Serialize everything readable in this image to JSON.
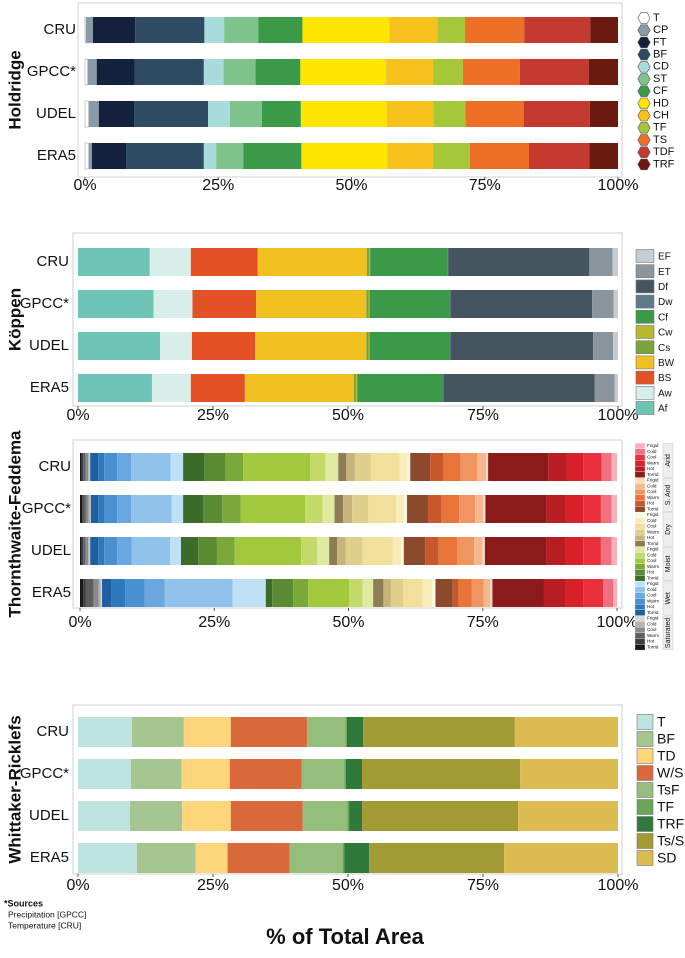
{
  "chart_data": [
    {
      "type": "bar",
      "orientation": "horizontal",
      "stacked": true,
      "ylabel": "Holdridge",
      "categories": [
        "CRU",
        "GPCC*",
        "UDEL",
        "ERA5"
      ],
      "xlim": [
        0,
        100
      ],
      "xticks": [
        {
          "value": 0,
          "label": "0%"
        },
        {
          "value": 25,
          "label": "25%"
        },
        {
          "value": 50,
          "label": "50%"
        },
        {
          "value": 75,
          "label": "75%"
        },
        {
          "value": 100,
          "label": "100%"
        }
      ],
      "series": [
        {
          "name": "T",
          "color": "#ffffff",
          "values": [
            0.2,
            0.5,
            0.7,
            0.7
          ]
        },
        {
          "name": "CP",
          "color": "#8a9ba8",
          "values": [
            1.3,
            1.7,
            1.9,
            0.6
          ]
        },
        {
          "name": "FT",
          "color": "#14213d",
          "values": [
            7.9,
            7.1,
            6.6,
            6.4
          ]
        },
        {
          "name": "BF",
          "color": "#2f4b63",
          "values": [
            13.0,
            13.0,
            13.9,
            14.6
          ]
        },
        {
          "name": "CD",
          "color": "#a8dcdc",
          "values": [
            3.7,
            3.7,
            4.1,
            2.3
          ]
        },
        {
          "name": "ST",
          "color": "#7fc38c",
          "values": [
            6.4,
            6.0,
            6.0,
            5.1
          ]
        },
        {
          "name": "CF",
          "color": "#3a9a48",
          "values": [
            8.3,
            8.4,
            7.3,
            10.9
          ]
        },
        {
          "name": "HD",
          "color": "#ffe600",
          "values": [
            16.3,
            16.1,
            16.1,
            16.1
          ]
        },
        {
          "name": "CH",
          "color": "#f7c21b",
          "values": [
            9.0,
            8.8,
            8.8,
            8.6
          ]
        },
        {
          "name": "TF",
          "color": "#a4c83a",
          "values": [
            5.2,
            5.6,
            6.0,
            6.9
          ]
        },
        {
          "name": "TS",
          "color": "#ee7027",
          "values": [
            11.1,
            10.7,
            10.9,
            11.1
          ]
        },
        {
          "name": "TDF",
          "color": "#c43a2e",
          "values": [
            12.4,
            12.9,
            12.4,
            11.3
          ]
        },
        {
          "name": "TRF",
          "color": "#6b1a12",
          "values": [
            5.2,
            5.5,
            5.3,
            5.4
          ]
        }
      ]
    },
    {
      "type": "bar",
      "orientation": "horizontal",
      "stacked": true,
      "ylabel": "Köppen",
      "categories": [
        "CRU",
        "GPCC*",
        "UDEL",
        "ERA5"
      ],
      "xlim": [
        0,
        100
      ],
      "xticks": [
        {
          "value": 0,
          "label": "0%"
        },
        {
          "value": 25,
          "label": "25%"
        },
        {
          "value": 50,
          "label": "50%"
        },
        {
          "value": 75,
          "label": "75%"
        },
        {
          "value": 100,
          "label": "100%"
        }
      ],
      "series": [
        {
          "name": "Af",
          "color": "#6fc5b5",
          "values": [
            13.3,
            14.0,
            15.2,
            13.7
          ]
        },
        {
          "name": "Aw",
          "color": "#d8eee8",
          "values": [
            7.6,
            7.2,
            5.9,
            7.2
          ]
        },
        {
          "name": "BS",
          "color": "#e35225",
          "values": [
            12.4,
            11.8,
            11.7,
            10.0
          ]
        },
        {
          "name": "BW",
          "color": "#f0c020",
          "values": [
            20.2,
            20.4,
            20.6,
            20.2
          ]
        },
        {
          "name": "Cs",
          "color": "#7aa33a",
          "values": [
            0.4,
            0.4,
            0.4,
            0.4
          ]
        },
        {
          "name": "Cw",
          "color": "#b8b930",
          "values": [
            0.2,
            0.2,
            0.2,
            0.2
          ]
        },
        {
          "name": "Cf",
          "color": "#3a9a48",
          "values": [
            14.3,
            14.8,
            14.8,
            15.8
          ]
        },
        {
          "name": "Dw",
          "color": "#5f7a88",
          "values": [
            0.2,
            0.2,
            0.2,
            0.2
          ]
        },
        {
          "name": "Df",
          "color": "#455560",
          "values": [
            26.1,
            26.2,
            26.4,
            28.0
          ]
        },
        {
          "name": "ET",
          "color": "#8a959e",
          "values": [
            4.3,
            4.0,
            3.7,
            3.7
          ]
        },
        {
          "name": "EF",
          "color": "#c5ccd2",
          "values": [
            1.0,
            0.8,
            0.9,
            0.6
          ]
        }
      ]
    },
    {
      "type": "bar",
      "orientation": "horizontal",
      "stacked": true,
      "ylabel": "Thornthwaite-Feddema",
      "categories": [
        "CRU",
        "GPCC*",
        "UDEL",
        "ERA5"
      ],
      "xlim": [
        0,
        100
      ],
      "xticks": [
        {
          "value": 0,
          "label": "0%"
        },
        {
          "value": 25,
          "label": "25%"
        },
        {
          "value": 50,
          "label": "50%"
        },
        {
          "value": 75,
          "label": "75%"
        },
        {
          "value": 100,
          "label": "100%"
        }
      ],
      "series_groups": [
        {
          "name": "Saturated",
          "series": [
            {
              "name": "Torrid",
              "color": "#1a1a1a",
              "values": [
                0.3,
                0.4,
                0.3,
                0.6
              ]
            },
            {
              "name": "Hot",
              "color": "#3d3d3d",
              "values": [
                0.3,
                0.3,
                0.3,
                0.5
              ]
            },
            {
              "name": "Warm",
              "color": "#5e5e5e",
              "values": [
                0.4,
                0.4,
                0.4,
                1.4
              ]
            },
            {
              "name": "Cool",
              "color": "#8a8a8a",
              "values": [
                0.5,
                0.5,
                0.5,
                1.0
              ]
            },
            {
              "name": "Cold",
              "color": "#b3b3b3",
              "values": [
                0.3,
                0.3,
                0.3,
                0.4
              ]
            },
            {
              "name": "Frigid",
              "color": "#d9d9d9",
              "values": [
                0.1,
                0.1,
                0.1,
                0.2
              ]
            }
          ]
        },
        {
          "name": "Wet",
          "series": [
            {
              "name": "Torrid",
              "color": "#1f5fa0",
              "values": [
                1.5,
                1.4,
                1.5,
                1.8
              ]
            },
            {
              "name": "Hot",
              "color": "#2e78be",
              "values": [
                1.1,
                1.2,
                1.1,
                2.5
              ]
            },
            {
              "name": "Warm",
              "color": "#4a8fd0",
              "values": [
                2.4,
                2.3,
                2.4,
                3.6
              ]
            },
            {
              "name": "Cool",
              "color": "#6aa7de",
              "values": [
                2.6,
                2.6,
                2.7,
                3.8
              ]
            },
            {
              "name": "Cold",
              "color": "#8fc3ec",
              "values": [
                7.4,
                7.6,
                7.2,
                12.6
              ]
            },
            {
              "name": "Frigid",
              "color": "#bfe0f5",
              "values": [
                2.3,
                2.1,
                2.0,
                6.2
              ]
            }
          ]
        },
        {
          "name": "Moist",
          "series": [
            {
              "name": "Torrid",
              "color": "#3d6b2a",
              "values": [
                3.9,
                3.7,
                3.2,
                1.2
              ]
            },
            {
              "name": "Hot",
              "color": "#5a8a32",
              "values": [
                3.9,
                3.6,
                3.5,
                3.9
              ]
            },
            {
              "name": "Warm",
              "color": "#7aa83a",
              "values": [
                3.4,
                3.4,
                3.3,
                2.8
              ]
            },
            {
              "name": "Cool",
              "color": "#a2c83e",
              "values": [
                12.5,
                12.0,
                12.4,
                7.6
              ]
            },
            {
              "name": "Cold",
              "color": "#c3d96a",
              "values": [
                2.8,
                3.3,
                3.0,
                2.5
              ]
            },
            {
              "name": "Frigid",
              "color": "#dfe9a0",
              "values": [
                2.4,
                2.2,
                2.2,
                2.0
              ]
            }
          ]
        },
        {
          "name": "Dry",
          "series": [
            {
              "name": "Torrid",
              "color": "#8c7d55",
              "values": [
                1.5,
                1.6,
                1.5,
                1.9
              ]
            },
            {
              "name": "Hot",
              "color": "#c8b47a",
              "values": [
                1.6,
                1.7,
                1.6,
                1.4
              ]
            },
            {
              "name": "Warm",
              "color": "#e0cf8c",
              "values": [
                2.9,
                3.0,
                3.1,
                2.3
              ]
            },
            {
              "name": "Cool",
              "color": "#f2e09a",
              "values": [
                5.4,
                5.2,
                5.6,
                3.6
              ]
            },
            {
              "name": "Cold",
              "color": "#f8ecba",
              "values": [
                1.5,
                1.4,
                1.6,
                1.8
              ]
            },
            {
              "name": "Frigid",
              "color": "#fdf8e0",
              "values": [
                0.5,
                0.6,
                0.5,
                0.6
              ]
            }
          ]
        },
        {
          "name": "S. Arid",
          "series": [
            {
              "name": "Torrid",
              "color": "#8b4a2b",
              "values": [
                3.7,
                3.9,
                4.0,
                3.2
              ]
            },
            {
              "name": "Hot",
              "color": "#c8582b",
              "values": [
                2.4,
                2.5,
                2.5,
                1.1
              ]
            },
            {
              "name": "Warm",
              "color": "#e8743a",
              "values": [
                3.3,
                3.3,
                3.4,
                2.4
              ]
            },
            {
              "name": "Cool",
              "color": "#f09560",
              "values": [
                3.1,
                3.0,
                3.2,
                2.3
              ]
            },
            {
              "name": "Cold",
              "color": "#f5b88e",
              "values": [
                1.6,
                1.5,
                1.6,
                1.2
              ]
            },
            {
              "name": "Frigid",
              "color": "#fadbc4",
              "values": [
                0.4,
                0.4,
                0.4,
                0.4
              ]
            }
          ]
        },
        {
          "name": "Arid",
          "series": [
            {
              "name": "Torrid",
              "color": "#8b1a1a",
              "values": [
                11.2,
                11.4,
                11.5,
                9.6
              ]
            },
            {
              "name": "Hot",
              "color": "#b81d24",
              "values": [
                3.4,
                3.5,
                3.5,
                4.0
              ]
            },
            {
              "name": "Warm",
              "color": "#d8202a",
              "values": [
                3.2,
                3.3,
                3.3,
                3.4
              ]
            },
            {
              "name": "Cool",
              "color": "#e8303a",
              "values": [
                3.3,
                3.3,
                3.3,
                3.6
              ]
            },
            {
              "name": "Cold",
              "color": "#f07080",
              "values": [
                1.9,
                2.0,
                2.0,
                1.9
              ]
            },
            {
              "name": "Frigid",
              "color": "#f8b0bc",
              "values": [
                1.0,
                1.0,
                1.0,
                0.7
              ]
            }
          ]
        }
      ]
    },
    {
      "type": "bar",
      "orientation": "horizontal",
      "stacked": true,
      "ylabel": "Whittaker-Ricklefs",
      "categories": [
        "CRU",
        "GPCC*",
        "UDEL",
        "ERA5"
      ],
      "xlim": [
        0,
        100
      ],
      "xticks": [
        {
          "value": 0,
          "label": "0%"
        },
        {
          "value": 25,
          "label": "25%"
        },
        {
          "value": 50,
          "label": "50%"
        },
        {
          "value": 75,
          "label": "75%"
        },
        {
          "value": 100,
          "label": "100%"
        }
      ],
      "series": [
        {
          "name": "T",
          "color": "#bfe3df",
          "values": [
            10.0,
            9.8,
            9.6,
            10.9
          ]
        },
        {
          "name": "BF",
          "color": "#a5c690",
          "values": [
            9.6,
            9.4,
            9.7,
            10.9
          ]
        },
        {
          "name": "TD",
          "color": "#fdd57a",
          "values": [
            8.7,
            8.9,
            9.0,
            5.9
          ]
        },
        {
          "name": "W/S",
          "color": "#d9683a",
          "values": [
            14.1,
            13.3,
            13.3,
            11.5
          ]
        },
        {
          "name": "TsF",
          "color": "#95bd7b",
          "values": [
            7.1,
            7.9,
            8.3,
            9.8
          ]
        },
        {
          "name": "TF",
          "color": "#6aa65a",
          "values": [
            0.3,
            0.3,
            0.3,
            0.3
          ]
        },
        {
          "name": "TRF",
          "color": "#2f7a3a",
          "values": [
            3.0,
            3.0,
            2.4,
            4.6
          ]
        },
        {
          "name": "Ts/S",
          "color": "#a29b35",
          "values": [
            28.1,
            29.3,
            28.9,
            25.0
          ]
        },
        {
          "name": "SD",
          "color": "#dcbb50",
          "values": [
            19.1,
            18.1,
            18.5,
            21.1
          ]
        }
      ]
    }
  ],
  "x_axis_label": "% of Total Area",
  "footnote": {
    "title": "*Sources",
    "lines": [
      "Precipitation [GPCC]",
      "Temperature [CRU]"
    ]
  }
}
